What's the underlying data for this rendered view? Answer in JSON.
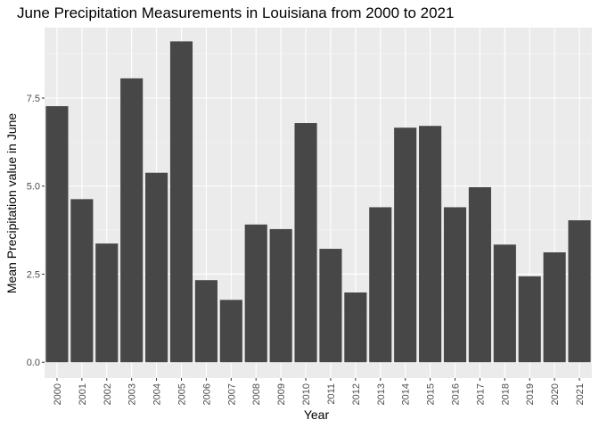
{
  "chart_data": {
    "type": "bar",
    "title": "June Precipitation Measurements in Louisiana from 2000 to 2021",
    "xlabel": "Year",
    "ylabel": "Mean Precipitation value in June",
    "categories": [
      "2000",
      "2001",
      "2002",
      "2003",
      "2004",
      "2005",
      "2006",
      "2007",
      "2008",
      "2009",
      "2010",
      "2011",
      "2012",
      "2013",
      "2014",
      "2015",
      "2016",
      "2017",
      "2018",
      "2019",
      "2020",
      "2021"
    ],
    "values": [
      7.27,
      4.63,
      3.37,
      8.06,
      5.38,
      9.11,
      2.33,
      1.77,
      3.91,
      3.78,
      6.79,
      3.22,
      1.98,
      4.4,
      6.66,
      6.71,
      4.4,
      4.97,
      3.34,
      2.44,
      3.12,
      4.03
    ],
    "yticks": [
      "0.0",
      "2.5",
      "5.0",
      "7.5"
    ],
    "ytick_values": [
      0,
      2.5,
      5,
      7.5
    ],
    "ylim": [
      -0.45,
      9.5
    ],
    "grid": true,
    "colors": {
      "bar": "#474747",
      "panel": "#ebebeb",
      "grid_major": "#ffffff",
      "grid_minor": "#f5f5f5",
      "tick_text": "#4d4d4d"
    }
  }
}
